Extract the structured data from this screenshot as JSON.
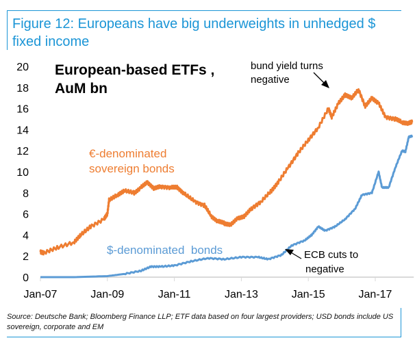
{
  "figure": {
    "title": "Figure 12: Europeans have big underweights in unhedged $ fixed income",
    "source": "Source: Deutsche Bank; Bloomberg Finance LLP; ETF data based on four largest providers; USD bonds include US sovereign, corporate and EM"
  },
  "chart_data": {
    "type": "line",
    "title_lines": [
      "European-based ETFs ,",
      "AuM bn"
    ],
    "xlabel": "",
    "ylabel": "",
    "ylim": [
      0,
      20
    ],
    "yticks": [
      0,
      2,
      4,
      6,
      8,
      10,
      12,
      14,
      16,
      18,
      20
    ],
    "xticks": [
      "Jan-07",
      "Jan-09",
      "Jan-11",
      "Jan-13",
      "Jan-15",
      "Jan-17"
    ],
    "xlim": [
      "2007-01",
      "2018-02"
    ],
    "grid": false,
    "colors": {
      "euro": "#ee7d31",
      "usd": "#5b9bd5",
      "accent": "#1b95d6"
    },
    "series": [
      {
        "name": "€-denominated sovereign bonds",
        "label_lines": [
          "€-denominated",
          "sovereign bonds"
        ],
        "x": [
          2007.0,
          2007.1,
          2007.5,
          2008.0,
          2008.2,
          2008.5,
          2008.9,
          2009.0,
          2009.05,
          2009.3,
          2009.5,
          2009.8,
          2010.0,
          2010.2,
          2010.4,
          2010.6,
          2010.9,
          2011.1,
          2011.3,
          2011.6,
          2011.9,
          2012.1,
          2012.3,
          2012.5,
          2012.7,
          2012.9,
          2013.1,
          2013.3,
          2013.6,
          2013.9,
          2014.1,
          2014.4,
          2014.7,
          2015.0,
          2015.3,
          2015.6,
          2015.7,
          2015.9,
          2016.1,
          2016.3,
          2016.5,
          2016.7,
          2016.9,
          2017.1,
          2017.3,
          2017.6,
          2017.8,
          2018.0,
          2018.1
        ],
        "values": [
          2.4,
          2.3,
          2.8,
          3.3,
          4.0,
          4.8,
          5.5,
          6.0,
          7.3,
          7.8,
          8.2,
          8.0,
          8.5,
          9.0,
          8.4,
          8.6,
          8.5,
          8.5,
          7.9,
          7.2,
          6.8,
          5.8,
          5.3,
          5.1,
          5.0,
          5.6,
          5.8,
          6.5,
          7.2,
          8.2,
          9.0,
          10.4,
          11.8,
          13.0,
          14.2,
          16.0,
          15.2,
          16.5,
          17.3,
          17.0,
          17.8,
          16.2,
          17.0,
          16.5,
          15.2,
          15.0,
          14.7,
          14.6,
          14.7
        ]
      },
      {
        "name": "$-denominated  bonds",
        "label_lines": [
          "$-denominated  bonds"
        ],
        "x": [
          2007.0,
          2008.0,
          2009.0,
          2009.5,
          2010.0,
          2010.3,
          2010.6,
          2011.0,
          2011.5,
          2012.0,
          2012.5,
          2013.0,
          2013.5,
          2013.8,
          2014.2,
          2014.5,
          2014.9,
          2015.1,
          2015.3,
          2015.5,
          2015.8,
          2016.1,
          2016.4,
          2016.6,
          2016.9,
          2017.1,
          2017.2,
          2017.4,
          2017.6,
          2017.8,
          2017.9,
          2018.0,
          2018.1
        ],
        "values": [
          0.0,
          0.0,
          0.1,
          0.3,
          0.6,
          1.0,
          1.0,
          1.1,
          1.5,
          1.8,
          1.7,
          1.9,
          1.9,
          1.7,
          2.1,
          3.0,
          3.5,
          4.0,
          4.8,
          4.4,
          4.8,
          5.5,
          6.5,
          7.8,
          8.0,
          10.0,
          8.5,
          8.5,
          10.4,
          12.0,
          11.9,
          13.3,
          13.4
        ]
      }
    ],
    "annotations": [
      {
        "lines": [
          "bund yield turns",
          "negative"
        ]
      },
      {
        "lines": [
          "ECB cuts to",
          "negative"
        ]
      }
    ]
  }
}
